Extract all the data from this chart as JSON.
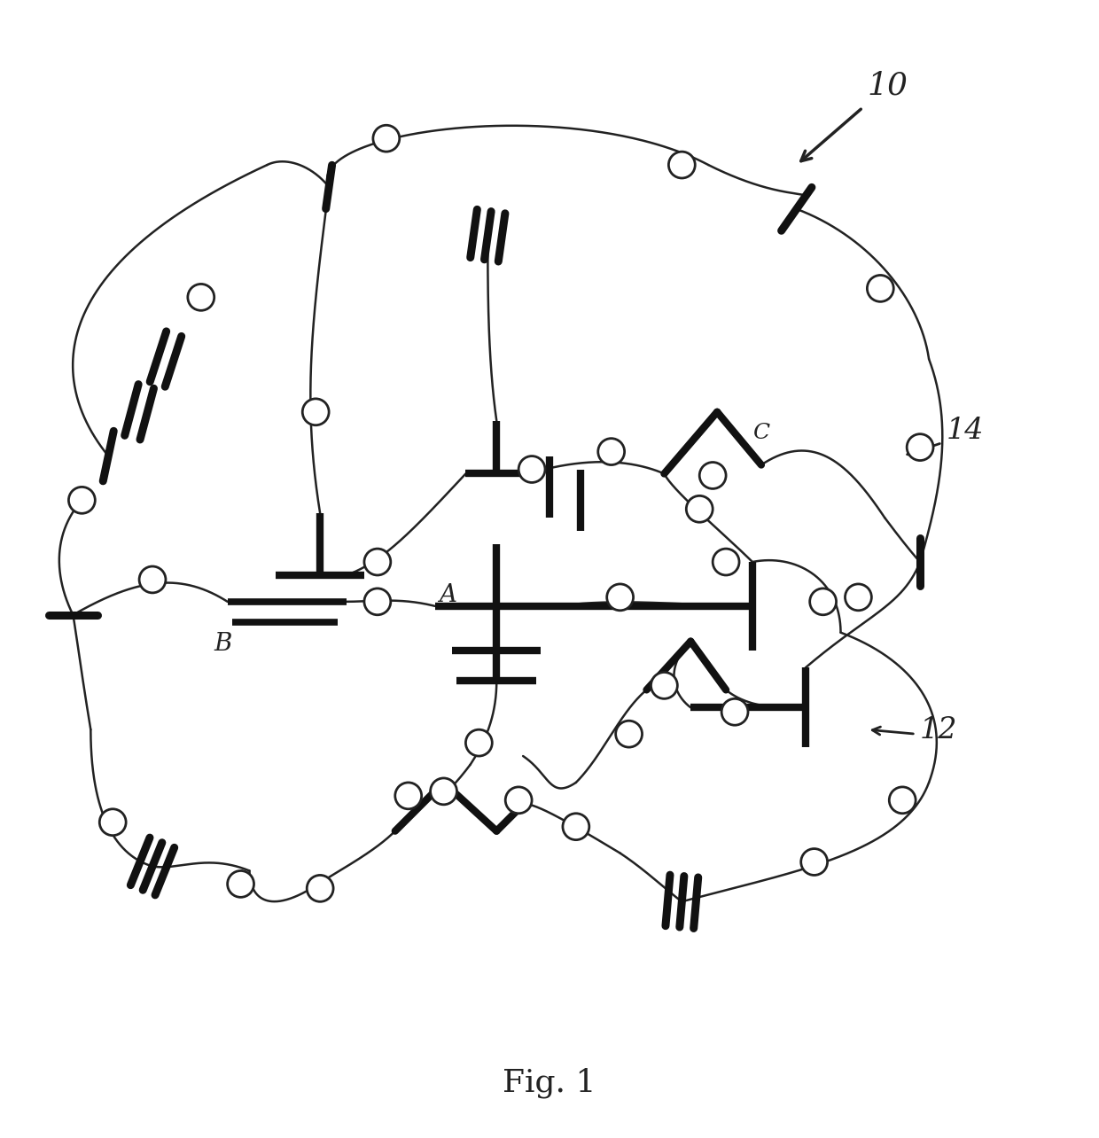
{
  "title": "Fig. 1",
  "background_color": "#ffffff",
  "line_color": "#222222",
  "node_color": "#ffffff",
  "node_edge_color": "#222222",
  "thick_bar_color": "#111111",
  "label_A": "A",
  "label_B": "B",
  "label_C": "C",
  "label_10": "10",
  "label_12": "12",
  "label_14": "14",
  "figsize": [
    12.4,
    12.84
  ],
  "dpi": 100
}
